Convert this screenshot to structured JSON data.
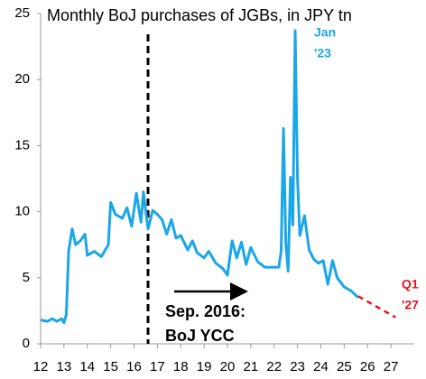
{
  "chart_data": {
    "type": "line",
    "title": "Monthly BoJ purchases of JGBs, in JPY tn",
    "xlim": [
      12,
      28
    ],
    "xticks": [
      12,
      13,
      14,
      15,
      16,
      17,
      18,
      19,
      20,
      21,
      22,
      23,
      24,
      25,
      26,
      27
    ],
    "ylim": [
      0,
      25
    ],
    "yticks": [
      0,
      5,
      10,
      15,
      20,
      25
    ],
    "vline": 16.6,
    "series": [
      {
        "color": "#1aa7e8",
        "dash": false,
        "x": [
          12.0,
          12.3,
          12.5,
          12.7,
          12.9,
          13.0,
          13.1,
          13.2,
          13.35,
          13.5,
          13.7,
          13.9,
          14.0,
          14.3,
          14.6,
          14.9,
          15.0,
          15.2,
          15.5,
          15.7,
          15.9,
          16.1,
          16.3,
          16.4,
          16.6,
          16.8,
          17.0,
          17.2,
          17.4,
          17.6,
          17.8,
          18.0,
          18.3,
          18.5,
          18.7,
          19.0,
          19.2,
          19.5,
          19.8,
          20.0,
          20.2,
          20.4,
          20.6,
          20.8,
          21.0,
          21.3,
          21.6,
          22.0,
          22.2,
          22.3,
          22.4,
          22.5,
          22.6,
          22.7,
          22.8,
          22.9,
          23.0,
          23.1,
          23.3,
          23.5,
          23.7,
          23.9,
          24.1,
          24.3,
          24.5,
          24.7,
          25.0,
          25.3,
          25.6
        ],
        "values": [
          1.8,
          1.7,
          1.9,
          1.7,
          1.9,
          1.6,
          2.2,
          7.0,
          8.7,
          7.5,
          7.8,
          8.3,
          6.7,
          7.0,
          6.6,
          7.5,
          10.7,
          9.8,
          9.5,
          10.3,
          8.9,
          11.4,
          9.2,
          11.5,
          8.7,
          10.1,
          9.8,
          9.4,
          8.3,
          9.4,
          8.0,
          8.2,
          7.1,
          7.8,
          6.9,
          6.5,
          7.0,
          6.1,
          5.7,
          5.2,
          7.8,
          6.5,
          7.7,
          6.0,
          7.3,
          6.2,
          5.8,
          5.8,
          5.8,
          7.0,
          16.3,
          7.6,
          5.5,
          12.6,
          9.0,
          23.7,
          12.5,
          8.2,
          9.7,
          7.1,
          6.4,
          6.1,
          6.3,
          4.5,
          6.3,
          5.0,
          4.3,
          4.0,
          3.5
        ]
      },
      {
        "color": "#e8141e",
        "dash": true,
        "x": [
          25.6,
          26.4,
          27.2
        ],
        "values": [
          3.6,
          2.8,
          2.0
        ]
      }
    ],
    "annotations": [
      "Jan",
      "'23",
      "Q1",
      "'27",
      "Sep. 2016:",
      "BoJ YCC"
    ]
  }
}
